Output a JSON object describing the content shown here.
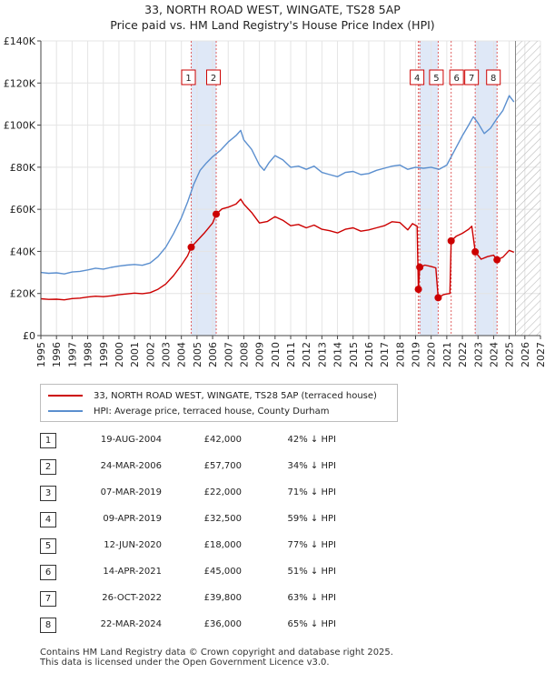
{
  "title_line1": "33, NORTH ROAD WEST, WINGATE, TS28 5AP",
  "title_line2": "Price paid vs. HM Land Registry's House Price Index (HPI)",
  "colors": {
    "price_paid": "#cc0000",
    "hpi": "#5b8fcf",
    "shade": "#dfe8f7",
    "grid": "#e4e4e4",
    "hatch": "#bbbbbb"
  },
  "chart_data": {
    "type": "line",
    "title": "33, NORTH ROAD WEST, WINGATE, TS28 5AP — Price paid vs. HM Land Registry's House Price Index (HPI)",
    "xlabel": "",
    "ylabel": "",
    "xlim": [
      1995,
      2027
    ],
    "ylim": [
      0,
      140000
    ],
    "x_ticks": [
      "1995",
      "1996",
      "1997",
      "1998",
      "1999",
      "2000",
      "2001",
      "2002",
      "2003",
      "2004",
      "2005",
      "2006",
      "2007",
      "2008",
      "2009",
      "2010",
      "2011",
      "2012",
      "2013",
      "2014",
      "2015",
      "2016",
      "2017",
      "2018",
      "2019",
      "2020",
      "2021",
      "2022",
      "2023",
      "2024",
      "2025",
      "2026",
      "2027"
    ],
    "y_ticks": [
      {
        "value": 0,
        "label": "£0"
      },
      {
        "value": 20000,
        "label": "£20K"
      },
      {
        "value": 40000,
        "label": "£40K"
      },
      {
        "value": 60000,
        "label": "£60K"
      },
      {
        "value": 80000,
        "label": "£80K"
      },
      {
        "value": 100000,
        "label": "£100K"
      },
      {
        "value": 120000,
        "label": "£120K"
      },
      {
        "value": 140000,
        "label": "£140K"
      }
    ],
    "grid": true,
    "forecast_from": 2025.4,
    "shaded_periods": [
      [
        2004.63,
        2006.23
      ],
      [
        2019.27,
        2020.45
      ],
      [
        2022.82,
        2024.22
      ]
    ],
    "series": [
      {
        "name": "33, NORTH ROAD WEST, WINGATE, TS28 5AP (terraced house)",
        "color": "#cc0000",
        "points": [
          [
            1995.0,
            17500
          ],
          [
            1995.5,
            17200
          ],
          [
            1996.0,
            17300
          ],
          [
            1996.5,
            17000
          ],
          [
            1997.0,
            17600
          ],
          [
            1997.5,
            17800
          ],
          [
            1998.0,
            18300
          ],
          [
            1998.5,
            18700
          ],
          [
            1999.0,
            18500
          ],
          [
            1999.5,
            18900
          ],
          [
            2000.0,
            19400
          ],
          [
            2000.5,
            19800
          ],
          [
            2001.0,
            20200
          ],
          [
            2001.5,
            19900
          ],
          [
            2002.0,
            20400
          ],
          [
            2002.5,
            22000
          ],
          [
            2003.0,
            24500
          ],
          [
            2003.5,
            28500
          ],
          [
            2004.0,
            33500
          ],
          [
            2004.4,
            38000
          ],
          [
            2004.63,
            42000
          ],
          [
            2005.0,
            45000
          ],
          [
            2005.5,
            49000
          ],
          [
            2006.0,
            53500
          ],
          [
            2006.23,
            57700
          ],
          [
            2006.6,
            60200
          ],
          [
            2007.0,
            61000
          ],
          [
            2007.5,
            62500
          ],
          [
            2007.8,
            64800
          ],
          [
            2008.0,
            62500
          ],
          [
            2008.5,
            58500
          ],
          [
            2009.0,
            53500
          ],
          [
            2009.5,
            54200
          ],
          [
            2010.0,
            56500
          ],
          [
            2010.5,
            54800
          ],
          [
            2011.0,
            52200
          ],
          [
            2011.5,
            52800
          ],
          [
            2012.0,
            51200
          ],
          [
            2012.5,
            52500
          ],
          [
            2013.0,
            50500
          ],
          [
            2013.5,
            49800
          ],
          [
            2014.0,
            48800
          ],
          [
            2014.5,
            50500
          ],
          [
            2015.0,
            51200
          ],
          [
            2015.5,
            49600
          ],
          [
            2016.0,
            50200
          ],
          [
            2016.5,
            51200
          ],
          [
            2017.0,
            52200
          ],
          [
            2017.5,
            54100
          ],
          [
            2018.0,
            53700
          ],
          [
            2018.5,
            50200
          ],
          [
            2018.8,
            53200
          ],
          [
            2019.1,
            52000
          ],
          [
            2019.18,
            22000
          ],
          [
            2019.27,
            32500
          ],
          [
            2019.6,
            33500
          ],
          [
            2020.0,
            32800
          ],
          [
            2020.3,
            32200
          ],
          [
            2020.45,
            18000
          ],
          [
            2020.8,
            19500
          ],
          [
            2021.0,
            19800
          ],
          [
            2021.2,
            20000
          ],
          [
            2021.28,
            45000
          ],
          [
            2021.6,
            47200
          ],
          [
            2022.0,
            48600
          ],
          [
            2022.4,
            50500
          ],
          [
            2022.6,
            52000
          ],
          [
            2022.82,
            39800
          ],
          [
            2023.2,
            36300
          ],
          [
            2023.6,
            37500
          ],
          [
            2024.0,
            38200
          ],
          [
            2024.22,
            36000
          ],
          [
            2024.6,
            37300
          ],
          [
            2025.0,
            40500
          ],
          [
            2025.3,
            39600
          ]
        ],
        "sales": [
          {
            "n": "1",
            "x": 2004.63,
            "y": 42000
          },
          {
            "n": "2",
            "x": 2006.23,
            "y": 57700
          },
          {
            "n": "3",
            "x": 2019.18,
            "y": 22000
          },
          {
            "n": "4",
            "x": 2019.27,
            "y": 32500
          },
          {
            "n": "5",
            "x": 2020.45,
            "y": 18000
          },
          {
            "n": "6",
            "x": 2021.28,
            "y": 45000
          },
          {
            "n": "7",
            "x": 2022.82,
            "y": 39800
          },
          {
            "n": "8",
            "x": 2024.22,
            "y": 36000
          }
        ]
      },
      {
        "name": "HPI: Average price, terraced house, County Durham",
        "color": "#5b8fcf",
        "points": [
          [
            1995.0,
            30000
          ],
          [
            1995.5,
            29600
          ],
          [
            1996.0,
            29800
          ],
          [
            1996.5,
            29300
          ],
          [
            1997.0,
            30200
          ],
          [
            1997.5,
            30500
          ],
          [
            1998.0,
            31200
          ],
          [
            1998.5,
            32000
          ],
          [
            1999.0,
            31600
          ],
          [
            1999.5,
            32400
          ],
          [
            2000.0,
            33000
          ],
          [
            2000.5,
            33500
          ],
          [
            2001.0,
            33800
          ],
          [
            2001.5,
            33400
          ],
          [
            2002.0,
            34500
          ],
          [
            2002.5,
            37500
          ],
          [
            2003.0,
            42000
          ],
          [
            2003.5,
            48500
          ],
          [
            2004.0,
            56000
          ],
          [
            2004.4,
            63500
          ],
          [
            2004.8,
            72000
          ],
          [
            2005.2,
            78500
          ],
          [
            2005.6,
            82000
          ],
          [
            2006.0,
            85000
          ],
          [
            2006.5,
            88000
          ],
          [
            2007.0,
            92000
          ],
          [
            2007.5,
            95000
          ],
          [
            2007.8,
            97500
          ],
          [
            2008.0,
            93000
          ],
          [
            2008.5,
            88500
          ],
          [
            2009.0,
            81000
          ],
          [
            2009.3,
            78500
          ],
          [
            2009.6,
            82000
          ],
          [
            2010.0,
            85500
          ],
          [
            2010.5,
            83500
          ],
          [
            2011.0,
            80000
          ],
          [
            2011.5,
            80500
          ],
          [
            2012.0,
            79000
          ],
          [
            2012.5,
            80500
          ],
          [
            2013.0,
            77500
          ],
          [
            2013.5,
            76500
          ],
          [
            2014.0,
            75500
          ],
          [
            2014.5,
            77500
          ],
          [
            2015.0,
            78000
          ],
          [
            2015.5,
            76500
          ],
          [
            2016.0,
            77000
          ],
          [
            2016.5,
            78500
          ],
          [
            2017.0,
            79500
          ],
          [
            2017.5,
            80500
          ],
          [
            2018.0,
            81000
          ],
          [
            2018.5,
            79000
          ],
          [
            2019.0,
            80000
          ],
          [
            2019.5,
            79500
          ],
          [
            2020.0,
            80000
          ],
          [
            2020.5,
            79000
          ],
          [
            2021.0,
            81000
          ],
          [
            2021.5,
            88000
          ],
          [
            2022.0,
            95000
          ],
          [
            2022.4,
            100000
          ],
          [
            2022.7,
            104000
          ],
          [
            2023.0,
            101000
          ],
          [
            2023.4,
            96000
          ],
          [
            2023.8,
            98500
          ],
          [
            2024.2,
            103000
          ],
          [
            2024.6,
            107000
          ],
          [
            2025.0,
            114000
          ],
          [
            2025.3,
            111000
          ]
        ]
      }
    ]
  },
  "legend": {
    "price_label": "33, NORTH ROAD WEST, WINGATE, TS28 5AP (terraced house)",
    "hpi_label": "HPI: Average price, terraced house, County Durham"
  },
  "transactions": [
    {
      "n": "1",
      "date": "19-AUG-2004",
      "price": "£42,000",
      "hpi": "42% ↓ HPI"
    },
    {
      "n": "2",
      "date": "24-MAR-2006",
      "price": "£57,700",
      "hpi": "34% ↓ HPI"
    },
    {
      "n": "3",
      "date": "07-MAR-2019",
      "price": "£22,000",
      "hpi": "71% ↓ HPI"
    },
    {
      "n": "4",
      "date": "09-APR-2019",
      "price": "£32,500",
      "hpi": "59% ↓ HPI"
    },
    {
      "n": "5",
      "date": "12-JUN-2020",
      "price": "£18,000",
      "hpi": "77% ↓ HPI"
    },
    {
      "n": "6",
      "date": "14-APR-2021",
      "price": "£45,000",
      "hpi": "51% ↓ HPI"
    },
    {
      "n": "7",
      "date": "26-OCT-2022",
      "price": "£39,800",
      "hpi": "63% ↓ HPI"
    },
    {
      "n": "8",
      "date": "22-MAR-2024",
      "price": "£36,000",
      "hpi": "65% ↓ HPI"
    }
  ],
  "footer_line1": "Contains HM Land Registry data © Crown copyright and database right 2025.",
  "footer_line2": "This data is licensed under the Open Government Licence v3.0."
}
